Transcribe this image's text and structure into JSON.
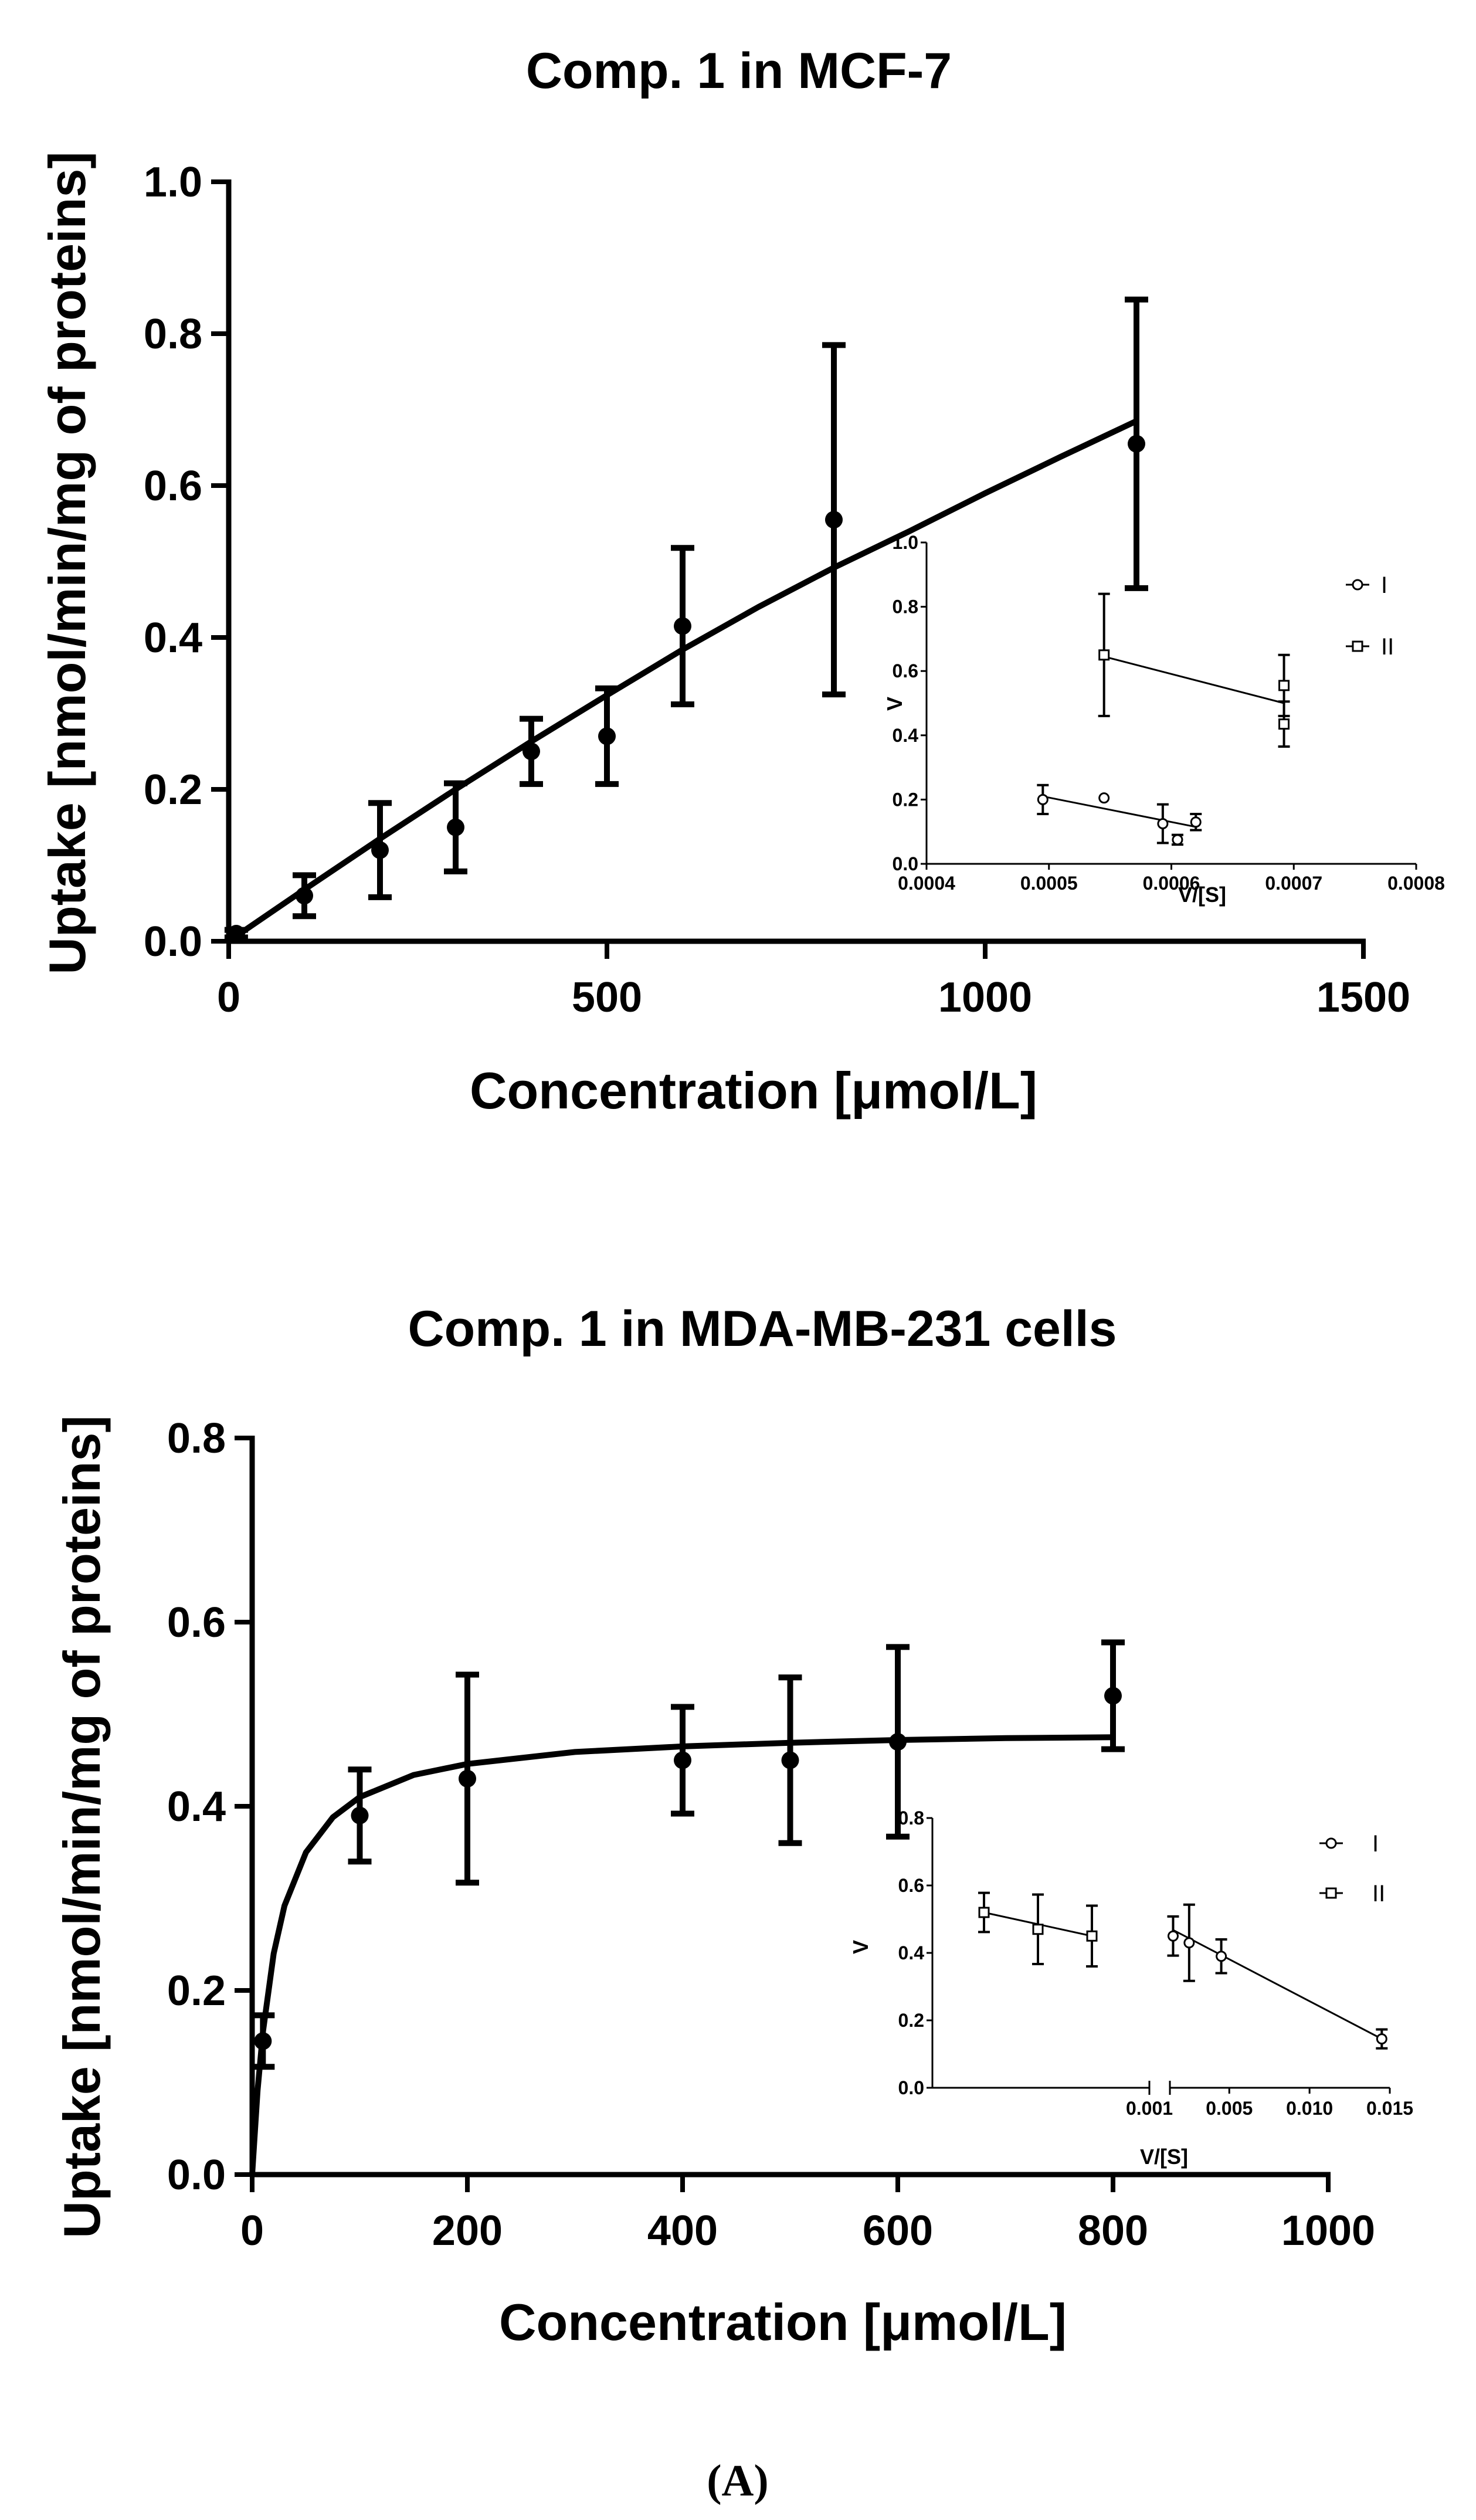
{
  "caption": "(A)",
  "colors": {
    "ink": "#000000",
    "background": "#ffffff"
  },
  "chart_data": [
    {
      "id": "top",
      "type": "scatter",
      "title": "Comp. 1 in MCF-7",
      "xlabel": "Concentration [μmol/L]",
      "ylabel": "Uptake [nmol/min/mg of proteins]",
      "xlim": [
        0,
        1500
      ],
      "ylim": [
        0,
        1.0
      ],
      "xticks": [
        0,
        500,
        1000,
        1500
      ],
      "xtick_labels": [
        "0",
        "500",
        "1000",
        "1500"
      ],
      "yticks": [
        0,
        0.2,
        0.4,
        0.6,
        0.8,
        1.0
      ],
      "ytick_labels": [
        "0.0",
        "0.2",
        "0.4",
        "0.6",
        "0.8",
        "1.0"
      ],
      "series": [
        {
          "name": "uptake",
          "x": [
            10,
            100,
            200,
            300,
            400,
            500,
            600,
            800,
            1200
          ],
          "y": [
            0.01,
            0.06,
            0.12,
            0.15,
            0.25,
            0.27,
            0.415,
            0.555,
            0.655
          ],
          "err": [
            0.005,
            0.027,
            0.062,
            0.058,
            0.043,
            0.063,
            0.103,
            0.23,
            0.19
          ]
        }
      ],
      "fit": {
        "x": [
          0,
          100,
          200,
          300,
          400,
          500,
          600,
          700,
          800,
          900,
          1000,
          1100,
          1200
        ],
        "y": [
          0,
          0.068,
          0.135,
          0.2,
          0.263,
          0.324,
          0.384,
          0.44,
          0.492,
          0.54,
          0.59,
          0.638,
          0.685
        ]
      },
      "inset": {
        "xlabel": "V/[S]",
        "ylabel": "V",
        "xlim": [
          0.0004,
          0.0008
        ],
        "ylim": [
          0,
          1.0
        ],
        "xticks": [
          0.0004,
          0.0005,
          0.0006,
          0.0007,
          0.0008
        ],
        "xtick_labels": [
          "0.0004",
          "0.0005",
          "0.0006",
          "0.0007",
          "0.0008"
        ],
        "yticks": [
          0,
          0.2,
          0.4,
          0.6,
          0.8,
          1.0
        ],
        "ytick_labels": [
          "0.0",
          "0.2",
          "0.4",
          "0.6",
          "0.8",
          "1.0"
        ],
        "legend": [
          "I",
          "II"
        ],
        "series": [
          {
            "name": "I",
            "marker": "circle",
            "x": [
              0.000495,
              0.000545,
              0.000593,
              0.000605,
              0.00062
            ],
            "y": [
              0.2,
              0.205,
              0.125,
              0.075,
              0.13
            ],
            "err": [
              0.045,
              0,
              0.06,
              0.015,
              0.025
            ],
            "fit_x": [
              0.000495,
              0.00062
            ],
            "fit_y": [
              0.21,
              0.115
            ]
          },
          {
            "name": "II",
            "marker": "square",
            "x": [
              0.000545,
              0.000692,
              0.000692
            ],
            "y": [
              0.65,
              0.555,
              0.435
            ],
            "err": [
              0.19,
              0.095,
              0.07
            ],
            "fit_x": [
              0.000545,
              0.000692
            ],
            "fit_y": [
              0.645,
              0.5
            ]
          }
        ]
      }
    },
    {
      "id": "bottom",
      "type": "scatter",
      "title": "Comp. 1 in MDA-MB-231 cells",
      "xlabel": "Concentration [μmol/L]",
      "ylabel": "Uptake [nmol/min/mg of proteins]",
      "xlim": [
        0,
        1000
      ],
      "ylim": [
        0,
        0.8
      ],
      "xticks": [
        0,
        200,
        400,
        600,
        800,
        1000
      ],
      "xtick_labels": [
        "0",
        "200",
        "400",
        "600",
        "800",
        "1000"
      ],
      "yticks": [
        0,
        0.2,
        0.4,
        0.6,
        0.8
      ],
      "ytick_labels": [
        "0.0",
        "0.2",
        "0.4",
        "0.6",
        "0.8"
      ],
      "series": [
        {
          "name": "uptake",
          "x": [
            10,
            100,
            200,
            400,
            500,
            600,
            800
          ],
          "y": [
            0.145,
            0.39,
            0.43,
            0.45,
            0.45,
            0.47,
            0.52
          ],
          "err": [
            0.028,
            0.05,
            0.113,
            0.058,
            0.09,
            0.103,
            0.058
          ]
        }
      ],
      "fit": {
        "x": [
          0,
          5,
          10,
          20,
          30,
          50,
          75,
          100,
          150,
          200,
          300,
          400,
          500,
          600,
          700,
          800
        ],
        "y": [
          0,
          0.091,
          0.155,
          0.24,
          0.292,
          0.35,
          0.388,
          0.41,
          0.434,
          0.446,
          0.459,
          0.465,
          0.469,
          0.472,
          0.474,
          0.475
        ]
      },
      "inset": {
        "xlabel": "V/[S]",
        "ylabel": "V",
        "ylim": [
          0,
          0.8
        ],
        "xticks": [
          0.001,
          0.005,
          0.01,
          0.015
        ],
        "xtick_labels": [
          "0.001",
          "0.005",
          "0.010",
          "0.015"
        ],
        "yticks": [
          0,
          0.2,
          0.4,
          0.6,
          0.8
        ],
        "ytick_labels": [
          "0.0",
          "0.2",
          "0.4",
          "0.6",
          "0.8"
        ],
        "legend": [
          "I",
          "II"
        ],
        "broken_axis": {
          "left_segment": {
            "x": [
              1,
              2,
              3
            ]
          },
          "right_segment": {
            "xlim": [
              0.0013,
              0.015
            ]
          }
        },
        "series": [
          {
            "name": "II",
            "marker": "square",
            "segment": "left",
            "x": [
              1,
              2,
              3
            ],
            "y": [
              0.52,
              0.47,
              0.45
            ],
            "err": [
              0.058,
              0.103,
              0.09
            ],
            "fit_x": [
              1,
              3
            ],
            "fit_y": [
              0.52,
              0.45
            ]
          },
          {
            "name": "I",
            "marker": "circle",
            "segment": "right",
            "x": [
              0.0015,
              0.0025,
              0.0045,
              0.0145
            ],
            "y": [
              0.45,
              0.43,
              0.39,
              0.145
            ],
            "err": [
              0.058,
              0.113,
              0.05,
              0.028
            ],
            "fit_x": [
              0.0015,
              0.0145
            ],
            "fit_y": [
              0.468,
              0.145
            ]
          }
        ]
      }
    }
  ]
}
